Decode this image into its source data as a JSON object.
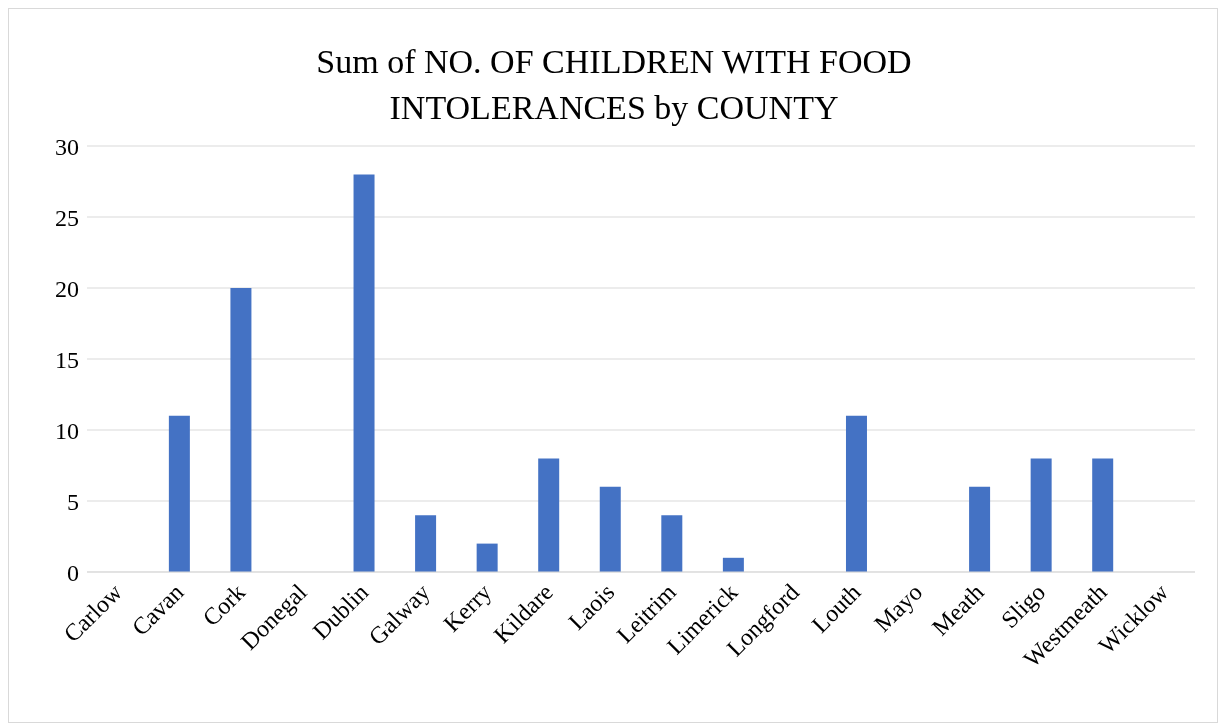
{
  "chart_data": {
    "type": "bar",
    "title": "Sum of NO. OF CHILDREN WITH FOOD INTOLERANCES by COUNTY",
    "categories": [
      "Carlow",
      "Cavan",
      "Cork",
      "Donegal",
      "Dublin",
      "Galway",
      "Kerry",
      "Kildare",
      "Laois",
      "Leitrim",
      "Limerick",
      "Longford",
      "Louth",
      "Mayo",
      "Meath",
      "Sligo",
      "Westmeath",
      "Wicklow"
    ],
    "values": [
      0,
      11,
      20,
      0,
      28,
      4,
      2,
      8,
      6,
      4,
      1,
      0,
      11,
      0,
      6,
      8,
      8,
      0
    ],
    "color": "#4472c4",
    "ylim": [
      0,
      30
    ],
    "yticks": [
      0,
      5,
      10,
      15,
      20,
      25,
      30
    ],
    "grid": "y"
  }
}
